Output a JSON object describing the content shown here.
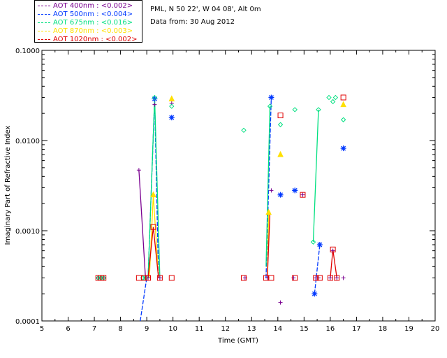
{
  "header": {
    "site": "PML, N 50 22', W 04 08', Alt 0m",
    "date": "Data from: 30 Aug 2012"
  },
  "legend": [
    {
      "label": "AOT  400nm : <0.002>",
      "color": "#7a0090"
    },
    {
      "label": "AOT  500nm : <0.004>",
      "color": "#0038ff"
    },
    {
      "label": "AOT  675nm : <0.016>",
      "color": "#00e080"
    },
    {
      "label": "AOT  870nm : <0.003>",
      "color": "#ffe000"
    },
    {
      "label": "AOT 1020nm : <0.002>",
      "color": "#e00000"
    }
  ],
  "chart_data": {
    "type": "scatter",
    "title": "",
    "xlabel": "Time (GMT)",
    "ylabel": "Imaginary Part of Refractive Index",
    "xlim": [
      5,
      20
    ],
    "ylim": [
      0.0001,
      0.1
    ],
    "yscale": "log",
    "xticks": [
      "5",
      "6",
      "7",
      "8",
      "9",
      "10",
      "11",
      "12",
      "13",
      "14",
      "15",
      "16",
      "17",
      "18",
      "19",
      "20"
    ],
    "yticks": [
      {
        "value": 0.0001,
        "label": "0.0001"
      },
      {
        "value": 0.001,
        "label": "0.0010"
      },
      {
        "value": 0.01,
        "label": "0.0100"
      },
      {
        "value": 0.1,
        "label": "0.1000"
      }
    ],
    "series": [
      {
        "name": "AOT 400nm",
        "color": "#7a0090",
        "marker": "plus",
        "points": [
          [
            7.15,
            0.0003
          ],
          [
            7.25,
            0.0003
          ],
          [
            7.35,
            0.0003
          ],
          [
            8.7,
            0.0047
          ],
          [
            8.95,
            0.0003
          ],
          [
            9.05,
            0.0003
          ],
          [
            9.3,
            0.025
          ],
          [
            9.5,
            0.0003
          ],
          [
            9.95,
            0.026
          ],
          [
            12.75,
            0.0003
          ],
          [
            13.6,
            0.0003
          ],
          [
            13.75,
            0.0028
          ],
          [
            14.1,
            0.00016
          ],
          [
            14.6,
            0.0003
          ],
          [
            14.95,
            0.0025
          ],
          [
            15.45,
            0.0003
          ],
          [
            15.55,
            0.0003
          ],
          [
            16.0,
            0.0003
          ],
          [
            16.1,
            0.0006
          ],
          [
            16.25,
            0.0003
          ],
          [
            16.5,
            0.0003
          ]
        ],
        "segments": [
          [
            [
              8.7,
              0.0047
            ],
            [
              8.95,
              0.0003
            ]
          ]
        ]
      },
      {
        "name": "AOT 500nm",
        "color": "#0038ff",
        "marker": "star",
        "points": [
          [
            9.3,
            0.029
          ],
          [
            9.95,
            0.018
          ],
          [
            13.75,
            0.03
          ],
          [
            14.1,
            0.0025
          ],
          [
            14.65,
            0.0028
          ],
          [
            15.4,
            0.0002
          ],
          [
            15.6,
            0.0007
          ],
          [
            16.5,
            0.0082
          ]
        ],
        "segments": [
          [
            [
              8.75,
              0.0001
            ],
            [
              9.0,
              0.0003
            ]
          ],
          [
            [
              9.05,
              0.0003
            ],
            [
              9.3,
              0.029
            ],
            [
              9.45,
              0.0003
            ]
          ],
          [
            [
              13.55,
              0.0003
            ],
            [
              13.75,
              0.03
            ]
          ],
          [
            [
              15.4,
              0.0002
            ],
            [
              15.6,
              0.0007
            ]
          ]
        ]
      },
      {
        "name": "AOT 675nm",
        "color": "#00e080",
        "marker": "diamond",
        "points": [
          [
            7.15,
            0.0003
          ],
          [
            7.25,
            0.0003
          ],
          [
            7.35,
            0.0003
          ],
          [
            8.85,
            0.0003
          ],
          [
            8.95,
            0.0003
          ],
          [
            9.3,
            0.03
          ],
          [
            9.95,
            0.024
          ],
          [
            12.7,
            0.013
          ],
          [
            13.7,
            0.024
          ],
          [
            14.1,
            0.015
          ],
          [
            14.65,
            0.022
          ],
          [
            15.35,
            0.00075
          ],
          [
            15.55,
            0.022
          ],
          [
            15.95,
            0.03
          ],
          [
            16.1,
            0.027
          ],
          [
            16.2,
            0.03
          ],
          [
            16.5,
            0.017
          ]
        ],
        "segments": [
          [
            [
              9.05,
              0.0003
            ],
            [
              9.3,
              0.03
            ],
            [
              9.5,
              0.0003
            ]
          ],
          [
            [
              13.55,
              0.0004
            ],
            [
              13.7,
              0.024
            ]
          ],
          [
            [
              15.35,
              0.00075
            ],
            [
              15.55,
              0.022
            ]
          ]
        ]
      },
      {
        "name": "AOT 870nm",
        "color": "#ffe000",
        "marker": "triangle",
        "points": [
          [
            9.25,
            0.0025
          ],
          [
            9.95,
            0.029
          ],
          [
            13.65,
            0.0016
          ],
          [
            14.1,
            0.007
          ],
          [
            16.5,
            0.025
          ]
        ],
        "segments": [
          [
            [
              9.1,
              0.0003
            ],
            [
              9.25,
              0.0025
            ],
            [
              9.45,
              0.0003
            ]
          ],
          [
            [
              13.6,
              0.0003
            ],
            [
              13.65,
              0.0016
            ]
          ]
        ]
      },
      {
        "name": "AOT 1020nm",
        "color": "#e00000",
        "marker": "square",
        "points": [
          [
            7.15,
            0.0003
          ],
          [
            7.25,
            0.0003
          ],
          [
            7.35,
            0.0003
          ],
          [
            8.7,
            0.0003
          ],
          [
            8.9,
            0.0003
          ],
          [
            9.05,
            0.0003
          ],
          [
            9.25,
            0.0011
          ],
          [
            9.5,
            0.0003
          ],
          [
            9.95,
            0.0003
          ],
          [
            12.7,
            0.0003
          ],
          [
            13.55,
            0.0003
          ],
          [
            13.75,
            0.0003
          ],
          [
            14.1,
            0.019
          ],
          [
            14.65,
            0.0003
          ],
          [
            14.95,
            0.0025
          ],
          [
            15.45,
            0.0003
          ],
          [
            15.6,
            0.0003
          ],
          [
            16.0,
            0.0003
          ],
          [
            16.1,
            0.00062
          ],
          [
            16.25,
            0.0003
          ],
          [
            16.5,
            0.03
          ]
        ],
        "segments": [
          [
            [
              9.05,
              0.0003
            ],
            [
              9.25,
              0.0011
            ],
            [
              9.45,
              0.0003
            ]
          ],
          [
            [
              13.6,
              0.0003
            ],
            [
              13.7,
              0.0016
            ]
          ],
          [
            [
              16.0,
              0.0003
            ],
            [
              16.1,
              0.00062
            ],
            [
              16.25,
              0.0003
            ]
          ]
        ]
      }
    ]
  }
}
